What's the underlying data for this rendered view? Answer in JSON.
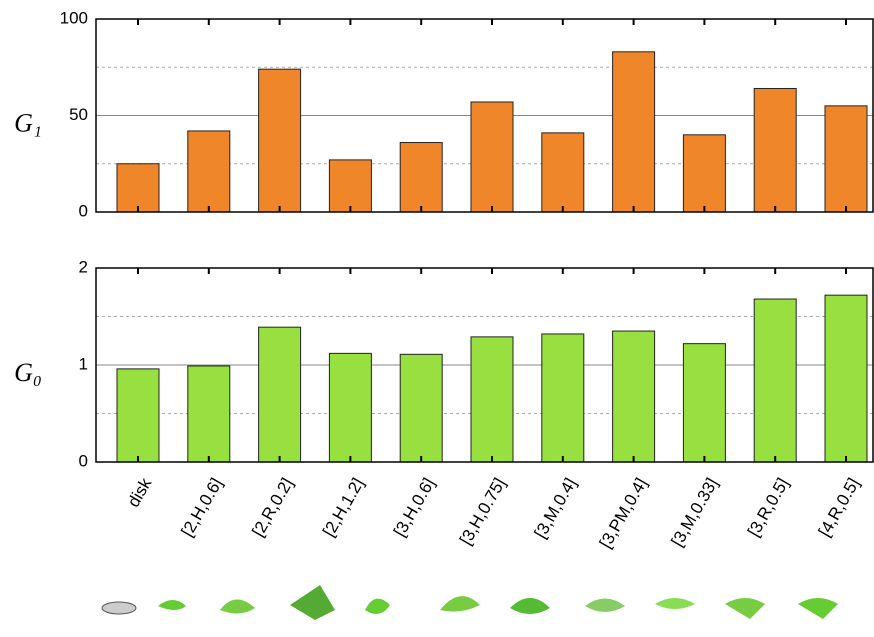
{
  "chart_data": [
    {
      "type": "bar",
      "ylabel": "G₁",
      "categories": [
        "disk",
        "[2,H,0.6]",
        "[2,R,0.2]",
        "[2,H,1.2]",
        "[3,H,0.6]",
        "[3,H,0.75]",
        "[3,M,0.4]",
        "[3,PM,0.4]",
        "[3,M,0.33]",
        "[3,R,0.5]",
        "[4,R,0.5]"
      ],
      "values": [
        25,
        42,
        74,
        27,
        36,
        57,
        41,
        83,
        40,
        64,
        55
      ],
      "color": "#f0862a",
      "ylim": [
        0,
        100
      ],
      "yticks": [
        0,
        50,
        100
      ],
      "minor_yticks": [
        25,
        75
      ],
      "grid": true
    },
    {
      "type": "bar",
      "ylabel": "G₀",
      "categories": [
        "disk",
        "[2,H,0.6]",
        "[2,R,0.2]",
        "[2,H,1.2]",
        "[3,H,0.6]",
        "[3,H,0.75]",
        "[3,M,0.4]",
        "[3,PM,0.4]",
        "[3,M,0.33]",
        "[3,R,0.5]",
        "[4,R,0.5]"
      ],
      "values": [
        0.96,
        0.99,
        1.39,
        1.12,
        1.11,
        1.29,
        1.32,
        1.35,
        1.22,
        1.68,
        1.72
      ],
      "color": "#98e040",
      "ylim": [
        0,
        2
      ],
      "yticks": [
        0,
        1,
        2
      ],
      "minor_yticks": [
        0.5,
        1.5
      ],
      "grid": true
    }
  ]
}
